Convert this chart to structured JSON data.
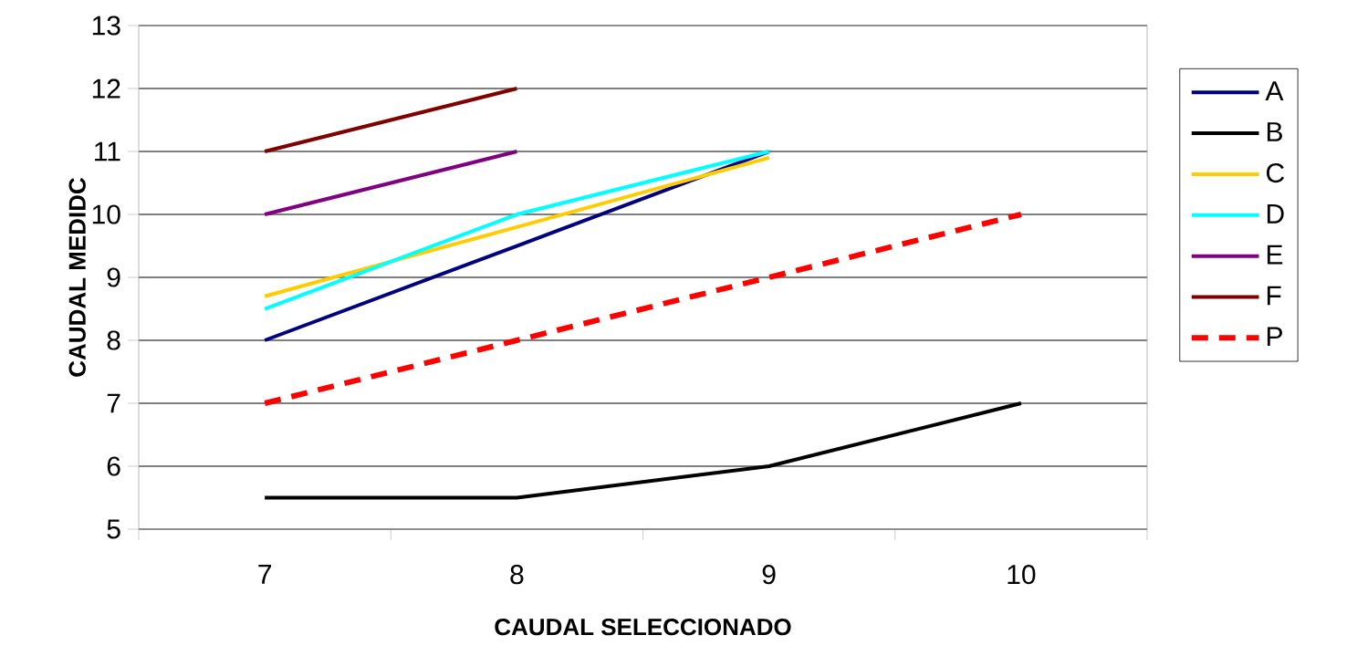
{
  "chart_data": {
    "type": "line",
    "xlabel": "CAUDAL SELECCIONADO",
    "ylabel": "CAUDAL MEDIDC",
    "categories": [
      "7",
      "8",
      "9",
      "10"
    ],
    "series": [
      {
        "name": "A",
        "color": "#000080",
        "values": [
          8,
          9.5,
          11,
          null
        ]
      },
      {
        "name": "B",
        "color": "#000000",
        "values": [
          5.5,
          5.5,
          6,
          7
        ]
      },
      {
        "name": "C",
        "color": "#ffcc00",
        "values": [
          8.7,
          9.8,
          10.9,
          null
        ]
      },
      {
        "name": "D",
        "color": "#00ffff",
        "values": [
          8.5,
          10,
          11,
          null
        ]
      },
      {
        "name": "E",
        "color": "#800080",
        "values": [
          10,
          11,
          null,
          null
        ]
      },
      {
        "name": "F",
        "color": "#800000",
        "values": [
          11,
          12,
          null,
          null
        ]
      },
      {
        "name": "P",
        "color": "#ff0000",
        "values": [
          7,
          8,
          9,
          10
        ],
        "line_style": "dashed"
      }
    ],
    "ylim": [
      5,
      13
    ],
    "yticks": [
      5,
      6,
      7,
      8,
      9,
      10,
      11,
      12,
      13
    ],
    "grid": "y",
    "legend": "right",
    "marker": "none",
    "line_style": "solid"
  }
}
